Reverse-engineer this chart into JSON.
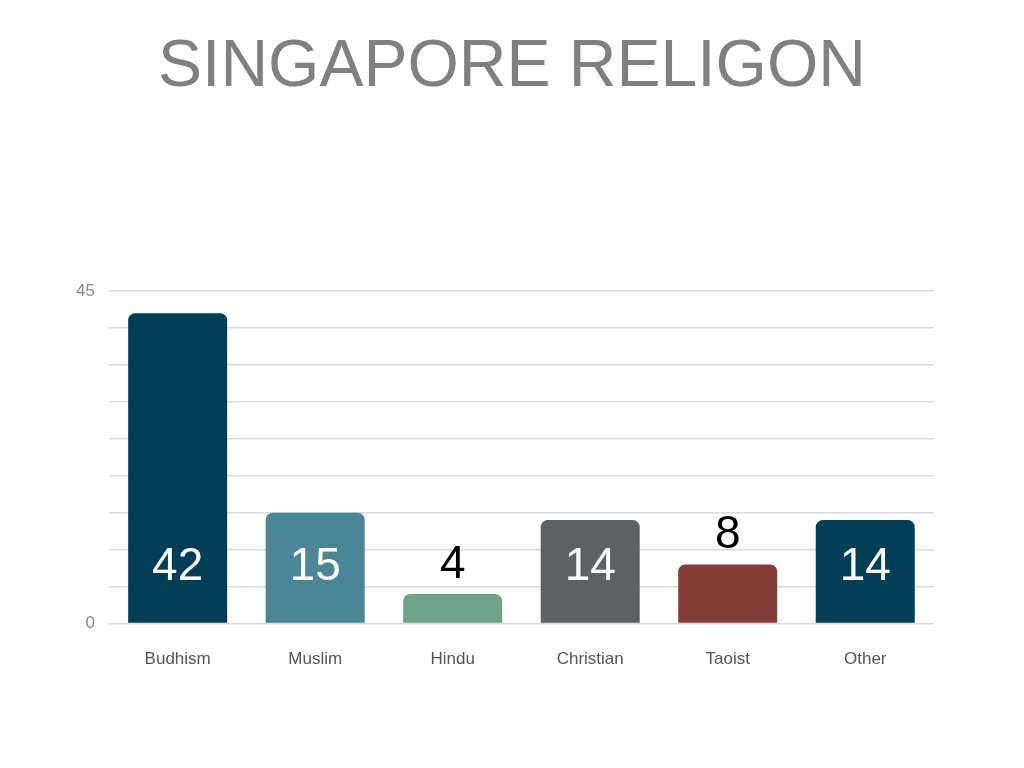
{
  "chart_data": {
    "type": "bar",
    "title": "SINGAPORE RELIGON",
    "categories": [
      "Budhism",
      "Muslim",
      "Hindu",
      "Christian",
      "Taoist",
      "Other"
    ],
    "values": [
      42,
      15,
      4,
      14,
      8,
      14
    ],
    "colors": [
      "#023f56",
      "#4a8696",
      "#70a18a",
      "#5d6163",
      "#853d37",
      "#023f56"
    ],
    "ylim": [
      0,
      45
    ],
    "yticks": [
      0,
      {
        "value": 5,
        "label": null
      },
      {
        "value": 10,
        "label": null
      },
      {
        "value": 15,
        "label": null
      },
      {
        "value": 20,
        "label": null
      },
      {
        "value": 25,
        "label": null
      },
      {
        "value": 30,
        "label": null
      },
      {
        "value": 35,
        "label": null
      },
      {
        "value": 40,
        "label": null
      },
      45
    ],
    "grid": "y",
    "data_labels": true
  }
}
